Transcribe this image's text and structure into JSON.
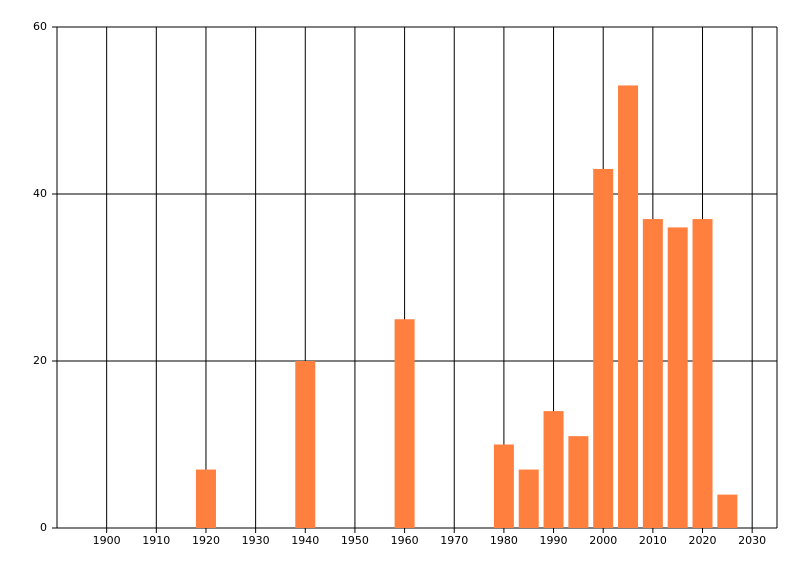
{
  "chart_data": {
    "type": "bar",
    "x": [
      1920,
      1940,
      1960,
      1980,
      1985,
      1990,
      1995,
      2000,
      2005,
      2010,
      2015,
      2020,
      2025
    ],
    "values": [
      7,
      20,
      25,
      10,
      7,
      14,
      11,
      43,
      53,
      37,
      36,
      37,
      4
    ],
    "color": "#ff7f3f",
    "xlim": [
      1890,
      2035
    ],
    "xticks": [
      1900,
      1910,
      1920,
      1930,
      1940,
      1950,
      1960,
      1970,
      1980,
      1990,
      2000,
      2010,
      2020,
      2030
    ],
    "ylim": [
      0,
      60
    ],
    "yticks": [
      0,
      20,
      40,
      60
    ],
    "grid": true
  }
}
